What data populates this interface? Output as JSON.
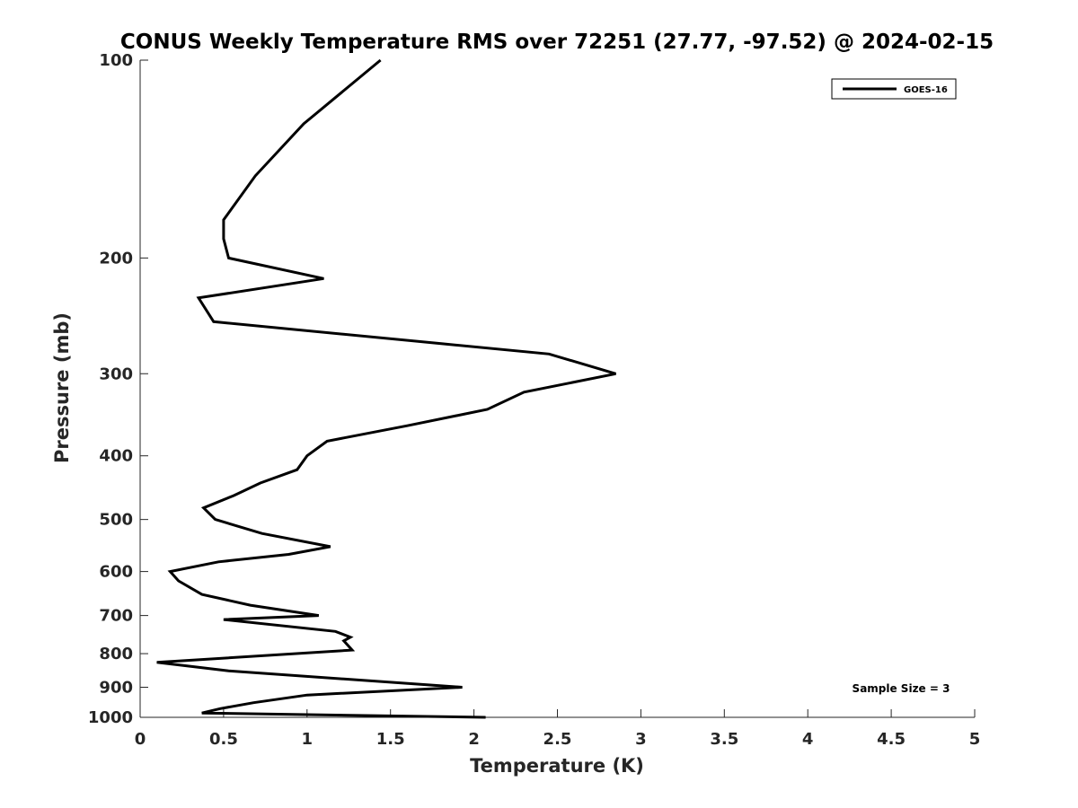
{
  "chart_data": {
    "type": "line",
    "title": "CONUS Weekly Temperature RMS over 72251 (27.77, -97.52) @ 2024-02-15",
    "xlabel": "Temperature (K)",
    "ylabel": "Pressure (mb)",
    "xlim": [
      0,
      5
    ],
    "ylim": [
      100,
      1000
    ],
    "y_scale": "log",
    "y_reversed": true,
    "grid": false,
    "xticks": [
      0,
      0.5,
      1,
      1.5,
      2,
      2.5,
      3,
      3.5,
      4,
      4.5,
      5
    ],
    "xtick_labels": [
      "0",
      "0.5",
      "1",
      "1.5",
      "2",
      "2.5",
      "3",
      "3.5",
      "4",
      "4.5",
      "5"
    ],
    "yticks": [
      100,
      200,
      300,
      400,
      500,
      600,
      700,
      800,
      900,
      1000
    ],
    "ytick_labels": [
      "100",
      "200",
      "300",
      "400",
      "500",
      "600",
      "700",
      "800",
      "900",
      "1000"
    ],
    "legend": {
      "position": "top-right",
      "entries": [
        "GOES-16"
      ]
    },
    "annotations": [
      "Sample Size = 3"
    ],
    "series": [
      {
        "name": "GOES-16",
        "color": "#000000",
        "points": [
          [
            1.44,
            100
          ],
          [
            0.98,
            125
          ],
          [
            0.69,
            150
          ],
          [
            0.5,
            175
          ],
          [
            0.5,
            187
          ],
          [
            0.53,
            200
          ],
          [
            1.1,
            215
          ],
          [
            0.35,
            230
          ],
          [
            0.44,
            250
          ],
          [
            2.45,
            280
          ],
          [
            2.85,
            300
          ],
          [
            2.3,
            320
          ],
          [
            2.08,
            340
          ],
          [
            1.6,
            360
          ],
          [
            1.12,
            380
          ],
          [
            1.0,
            400
          ],
          [
            0.94,
            420
          ],
          [
            0.72,
            440
          ],
          [
            0.56,
            460
          ],
          [
            0.38,
            480
          ],
          [
            0.45,
            500
          ],
          [
            0.73,
            525
          ],
          [
            1.14,
            550
          ],
          [
            0.89,
            565
          ],
          [
            0.47,
            580
          ],
          [
            0.18,
            600
          ],
          [
            0.23,
            620
          ],
          [
            0.37,
            650
          ],
          [
            0.66,
            675
          ],
          [
            1.07,
            700
          ],
          [
            0.5,
            710
          ],
          [
            1.17,
            740
          ],
          [
            1.26,
            755
          ],
          [
            1.22,
            765
          ],
          [
            1.27,
            790
          ],
          [
            0.1,
            825
          ],
          [
            0.53,
            850
          ],
          [
            1.93,
            900
          ],
          [
            1.0,
            925
          ],
          [
            0.68,
            950
          ],
          [
            0.48,
            970
          ],
          [
            0.37,
            985
          ],
          [
            2.07,
            1000
          ]
        ]
      }
    ]
  }
}
